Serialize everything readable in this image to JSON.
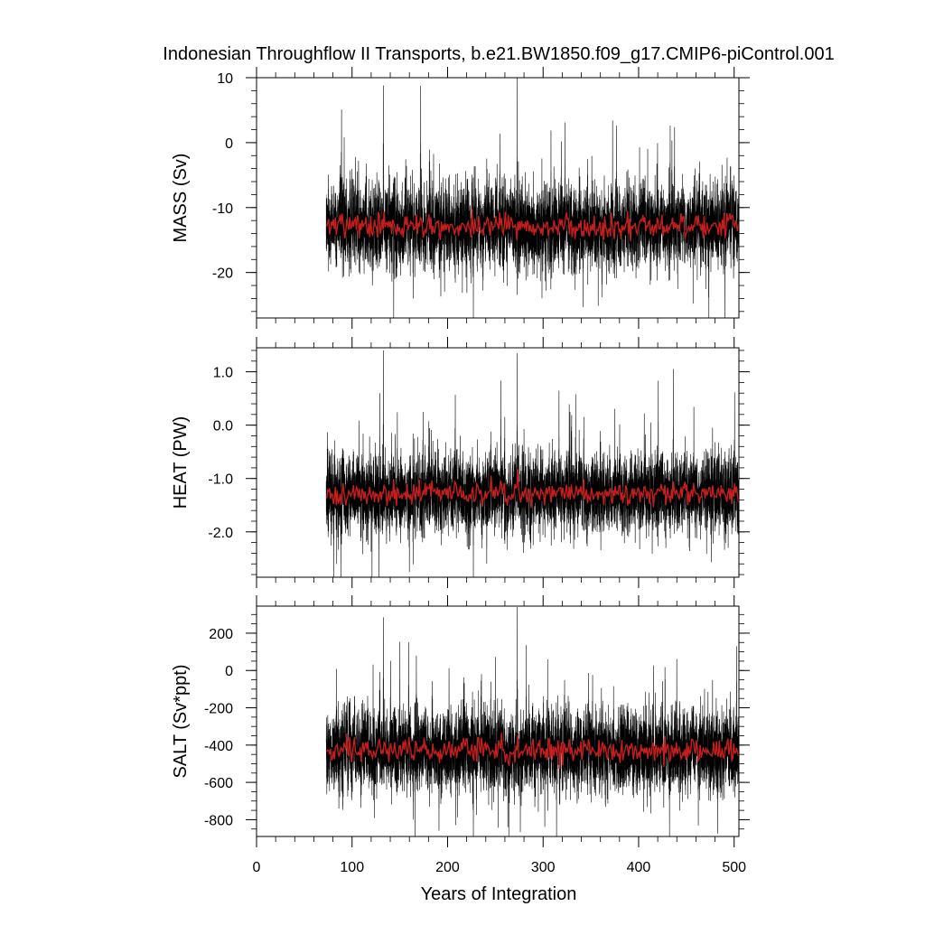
{
  "chart_data": {
    "type": "line",
    "title": "Indonesian Throughflow II Transports, b.e21.BW1850.f09_g17.CMIP6-piControl.001",
    "xlabel": "Years of Integration",
    "xlim": [
      0,
      505
    ],
    "x_start": 73,
    "x_end": 505,
    "xticks": [
      0,
      100,
      200,
      300,
      400,
      500
    ],
    "xtick_labels": [
      "0",
      "100",
      "200",
      "300",
      "400",
      "500"
    ],
    "colors": {
      "monthly": "#000000",
      "monthly_light": "#7f7f7f",
      "annual_mean": "#c41e1e"
    },
    "panels": [
      {
        "ylabel": "MASS (Sv)",
        "ylim": [
          -27,
          10
        ],
        "yticks": [
          10,
          0,
          -10,
          -20
        ],
        "ytick_labels": [
          "10",
          "0",
          "-10",
          "-20"
        ],
        "minor_step": 2,
        "mean": -12.9,
        "std": 3.2,
        "annual_mean_amp": 0.9,
        "spikes": [
          {
            "x": 133,
            "y": 8.8
          },
          {
            "x": 273,
            "y": 10
          },
          {
            "x": 227,
            "y": -27
          },
          {
            "x": 164,
            "y": -24
          }
        ],
        "series": [
          {
            "name": "monthly",
            "values": []
          },
          {
            "name": "annual mean",
            "values": []
          }
        ]
      },
      {
        "ylabel": "HEAT (PW)",
        "ylim": [
          -2.85,
          1.45
        ],
        "yticks": [
          1.0,
          0.0,
          -1.0,
          -2.0
        ],
        "ytick_labels": [
          "1.0",
          "0.0",
          "-1.0",
          "-2.0"
        ],
        "minor_step": 0.2,
        "mean": -1.28,
        "std": 0.36,
        "annual_mean_amp": 0.1,
        "spikes": [
          {
            "x": 133,
            "y": 1.4
          },
          {
            "x": 273,
            "y": 1.35
          },
          {
            "x": 227,
            "y": -2.85
          },
          {
            "x": 160,
            "y": -2.75
          }
        ],
        "series": [
          {
            "name": "monthly",
            "values": []
          },
          {
            "name": "annual mean",
            "values": []
          }
        ]
      },
      {
        "ylabel": "SALT (Sv*ppt)",
        "ylim": [
          -890,
          345
        ],
        "yticks": [
          200,
          0,
          -200,
          -400,
          -600,
          -800
        ],
        "ytick_labels": [
          "200",
          "0",
          "-200",
          "-400",
          "-600",
          "-800"
        ],
        "minor_step": 50,
        "mean": -430,
        "std": 108,
        "annual_mean_amp": 30,
        "spikes": [
          {
            "x": 133,
            "y": 285
          },
          {
            "x": 273,
            "y": 340
          },
          {
            "x": 227,
            "y": -890
          },
          {
            "x": 164,
            "y": -800
          }
        ],
        "series": [
          {
            "name": "monthly",
            "values": []
          },
          {
            "name": "annual mean",
            "values": []
          }
        ]
      }
    ]
  }
}
